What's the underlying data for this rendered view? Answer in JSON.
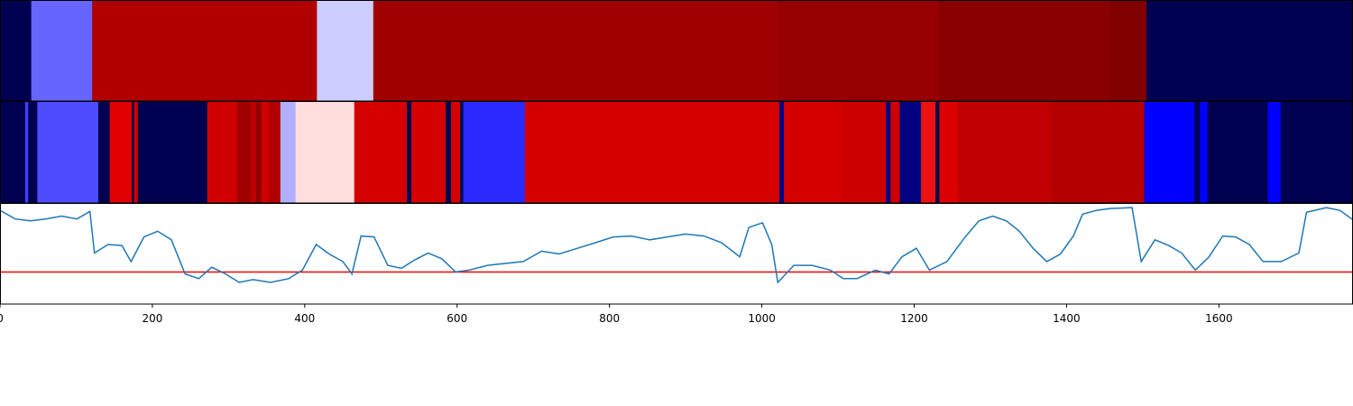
{
  "chart_data": [
    {
      "type": "segments",
      "xlim": [
        0,
        1776
      ],
      "edges": [
        0,
        41,
        121,
        416,
        490,
        1021,
        1232,
        1457,
        1505,
        1776
      ],
      "colors": [
        "#000050",
        "#6666ff",
        "#b00000",
        "#ccccff",
        "#a00000",
        "#960000",
        "#8a0000",
        "#800000",
        "#000050"
      ]
    },
    {
      "type": "segments",
      "xlim": [
        0,
        1776
      ],
      "edges": [
        0,
        33,
        37,
        49,
        129,
        144,
        173,
        176,
        181,
        272,
        311,
        329,
        336,
        343,
        353,
        368,
        388,
        465,
        534,
        540,
        585,
        592,
        604,
        608,
        689,
        1023,
        1029,
        1105,
        1163,
        1169,
        1181,
        1209,
        1228,
        1233,
        1257,
        1380,
        1502,
        1568,
        1575,
        1585,
        1664,
        1681,
        1776
      ],
      "colors": [
        "#000050",
        "#4040ff",
        "#000050",
        "#4d4dff",
        "#000050",
        "#e00000",
        "#000050",
        "#d00000",
        "#000050",
        "#d00000",
        "#a00000",
        "#c00000",
        "#900000",
        "#d00000",
        "#b00000",
        "#b0b0ff",
        "#ffdddd",
        "#d50000",
        "#000050",
        "#d50000",
        "#000050",
        "#d50000",
        "#000050",
        "#2a2aff",
        "#d50000",
        "#000080",
        "#d50000",
        "#cc0000",
        "#000080",
        "#d00000",
        "#000080",
        "#ee1111",
        "#000050",
        "#dd0000",
        "#c00000",
        "#b40000",
        "#0000ff",
        "#000050",
        "#0000ff",
        "#000050",
        "#0000ff",
        "#000050"
      ]
    },
    {
      "type": "line",
      "xlim": [
        0,
        1776
      ],
      "ylim": [
        0,
        1
      ],
      "color": "#1f77b4",
      "xticks": [
        0,
        200,
        400,
        600,
        800,
        1000,
        1200,
        1400,
        1600
      ],
      "threshold": 0.31,
      "threshold_color": "#ff0000",
      "x": [
        0,
        20,
        40,
        60,
        81,
        101,
        118,
        124,
        142,
        160,
        172,
        189,
        207,
        225,
        243,
        261,
        278,
        296,
        314,
        332,
        355,
        379,
        397,
        415,
        432,
        450,
        462,
        474,
        491,
        509,
        527,
        545,
        562,
        580,
        598,
        616,
        640,
        663,
        687,
        711,
        734,
        758,
        782,
        805,
        829,
        853,
        876,
        900,
        924,
        947,
        971,
        983,
        1001,
        1013,
        1021,
        1042,
        1066,
        1090,
        1107,
        1125,
        1149,
        1167,
        1184,
        1203,
        1220,
        1243,
        1267,
        1285,
        1303,
        1321,
        1338,
        1356,
        1374,
        1392,
        1409,
        1421,
        1439,
        1457,
        1486,
        1498,
        1516,
        1534,
        1551,
        1569,
        1587,
        1605,
        1622,
        1640,
        1658,
        1682,
        1705,
        1715,
        1741,
        1759,
        1776
      ],
      "values": [
        0.96,
        0.87,
        0.85,
        0.87,
        0.9,
        0.87,
        0.95,
        0.51,
        0.6,
        0.59,
        0.42,
        0.68,
        0.74,
        0.65,
        0.29,
        0.24,
        0.36,
        0.29,
        0.2,
        0.23,
        0.2,
        0.24,
        0.33,
        0.6,
        0.5,
        0.42,
        0.29,
        0.69,
        0.68,
        0.38,
        0.35,
        0.44,
        0.51,
        0.45,
        0.31,
        0.33,
        0.38,
        0.4,
        0.42,
        0.53,
        0.5,
        0.56,
        0.62,
        0.68,
        0.69,
        0.65,
        0.68,
        0.71,
        0.69,
        0.62,
        0.47,
        0.78,
        0.83,
        0.6,
        0.2,
        0.38,
        0.38,
        0.33,
        0.24,
        0.24,
        0.33,
        0.29,
        0.47,
        0.56,
        0.33,
        0.42,
        0.68,
        0.85,
        0.9,
        0.85,
        0.74,
        0.56,
        0.42,
        0.5,
        0.69,
        0.92,
        0.96,
        0.98,
        0.99,
        0.42,
        0.65,
        0.59,
        0.51,
        0.33,
        0.47,
        0.69,
        0.68,
        0.6,
        0.42,
        0.42,
        0.51,
        0.94,
        0.99,
        0.96,
        0.86
      ]
    }
  ]
}
